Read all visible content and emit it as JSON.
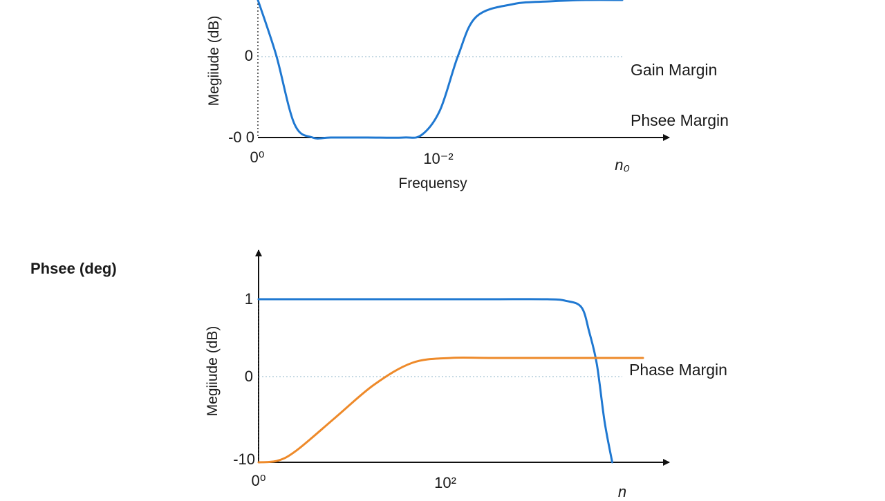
{
  "heading": "Phsee (deg)",
  "chart_data": [
    {
      "type": "line",
      "title": "",
      "ylabel": "Megiiude (dB)",
      "xlabel": "Frequensy",
      "y_ticks": [
        "0",
        "-0 0"
      ],
      "x_ticks": [
        "0⁰",
        "10⁻²",
        "n₀"
      ],
      "annotations": [
        "Gain Margin",
        "Phsee Margin"
      ],
      "grid": false,
      "reference_line": "dotted line at 0",
      "series": [
        {
          "color": "#1f78d1",
          "x": [
            0.0,
            0.05,
            0.1,
            0.15,
            0.2,
            0.3,
            0.4,
            0.45,
            0.5,
            0.55,
            0.6,
            0.7,
            0.8,
            0.9,
            1.0
          ],
          "values": [
            1.0,
            0.6,
            0.1,
            0.0,
            0.0,
            0.0,
            0.0,
            0.02,
            0.2,
            0.6,
            0.88,
            0.97,
            0.99,
            1.0,
            1.0
          ]
        }
      ]
    },
    {
      "type": "line",
      "title": "",
      "ylabel": "Megiiude (dB)",
      "xlabel": "",
      "y_ticks": [
        "1",
        "0",
        "-10"
      ],
      "x_ticks": [
        "0⁰",
        "10²",
        "n"
      ],
      "annotations": [
        "Phase Margin"
      ],
      "grid": false,
      "reference_line": "dotted line at 0",
      "series": [
        {
          "color": "#1f78d1",
          "x": [
            0.0,
            0.2,
            0.4,
            0.6,
            0.75,
            0.8,
            0.84,
            0.86,
            0.88,
            0.9,
            0.92
          ],
          "values": [
            1.0,
            1.0,
            1.0,
            1.0,
            1.0,
            0.98,
            0.9,
            0.6,
            0.2,
            -0.5,
            -1.0
          ]
        },
        {
          "color": "#ee8a2a",
          "x": [
            0.0,
            0.05,
            0.1,
            0.2,
            0.3,
            0.4,
            0.5,
            0.6,
            0.8,
            1.0
          ],
          "values": [
            -1.0,
            -0.98,
            -0.85,
            -0.45,
            -0.05,
            0.22,
            0.28,
            0.28,
            0.28,
            0.28
          ]
        }
      ]
    }
  ]
}
